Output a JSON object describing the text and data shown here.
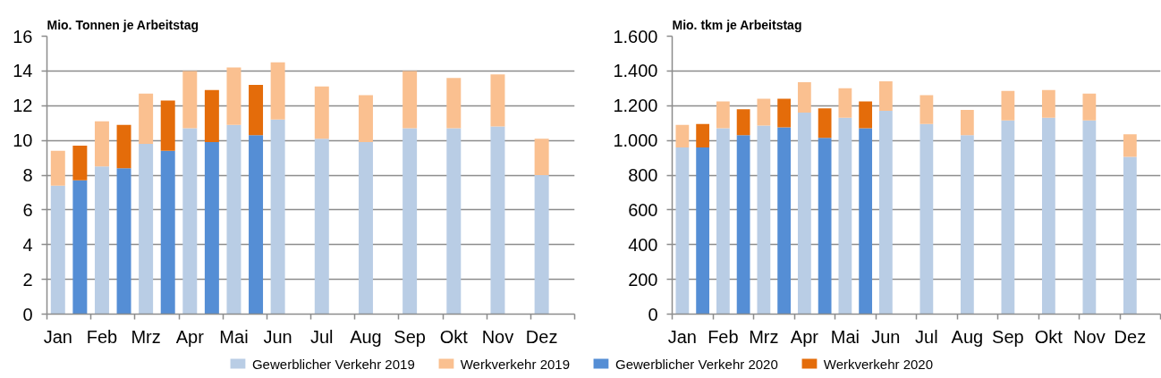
{
  "chart_data": [
    {
      "type": "bar",
      "stacked": true,
      "title": "Mio. Tonnen je Arbeitstag",
      "categories": [
        "Jan",
        null,
        "Feb",
        null,
        "Mrz",
        null,
        "Apr",
        null,
        "Mai",
        null,
        "Jun",
        null,
        "Jul",
        null,
        "Aug",
        null,
        "Sep",
        null,
        "Okt",
        null,
        "Nov",
        null,
        "Dez",
        null
      ],
      "series": [
        {
          "name": "Gewerblicher Verkehr 2019",
          "color": "#b9cde5",
          "values": [
            7.4,
            null,
            8.5,
            null,
            9.8,
            null,
            10.7,
            null,
            10.9,
            null,
            11.2,
            null,
            10.1,
            null,
            9.9,
            null,
            10.7,
            null,
            10.7,
            null,
            10.8,
            null,
            8.0,
            null
          ]
        },
        {
          "name": "Werkverkehr 2019",
          "color": "#fac090",
          "values": [
            2.0,
            null,
            2.6,
            null,
            2.9,
            null,
            3.3,
            null,
            3.3,
            null,
            3.3,
            null,
            3.0,
            null,
            2.7,
            null,
            3.3,
            null,
            2.9,
            null,
            3.0,
            null,
            2.1,
            null
          ]
        },
        {
          "name": "Gewerblicher Verkehr 2020",
          "color": "#558ed5",
          "values": [
            null,
            7.7,
            null,
            8.4,
            null,
            9.4,
            null,
            9.9,
            null,
            10.3,
            null,
            null,
            null,
            null,
            null,
            null,
            null,
            null,
            null,
            null,
            null,
            null,
            null,
            null
          ]
        },
        {
          "name": "Werkverkehr 2020",
          "color": "#e46c0a",
          "values": [
            null,
            2.0,
            null,
            2.5,
            null,
            2.9,
            null,
            3.0,
            null,
            2.9,
            null,
            null,
            null,
            null,
            null,
            null,
            null,
            null,
            null,
            null,
            null,
            null,
            null,
            null
          ]
        }
      ],
      "ylim": [
        0,
        16
      ],
      "yticks": [
        0,
        2,
        4,
        6,
        8,
        10,
        12,
        14,
        16
      ],
      "grid": "y",
      "legend": "bottom"
    },
    {
      "type": "bar",
      "stacked": true,
      "title": "Mio. tkm je Arbeitstag",
      "categories": [
        "Jan",
        null,
        "Feb",
        null,
        "Mrz",
        null,
        "Apr",
        null,
        "Mai",
        null,
        "Jun",
        null,
        "Jul",
        null,
        "Aug",
        null,
        "Sep",
        null,
        "Okt",
        null,
        "Nov",
        null,
        "Dez",
        null
      ],
      "series": [
        {
          "color": "#b9cde5",
          "values": [
            960,
            null,
            1070,
            null,
            1085,
            null,
            1160,
            null,
            1130,
            null,
            1170,
            null,
            1095,
            null,
            1030,
            null,
            1115,
            null,
            1130,
            null,
            1115,
            null,
            905,
            null
          ]
        },
        {
          "color": "#fac090",
          "values": [
            130,
            null,
            155,
            null,
            155,
            null,
            175,
            null,
            170,
            null,
            170,
            null,
            165,
            null,
            145,
            null,
            170,
            null,
            160,
            null,
            155,
            null,
            130,
            null
          ]
        },
        {
          "color": "#558ed5",
          "values": [
            null,
            960,
            null,
            1030,
            null,
            1075,
            null,
            1015,
            null,
            1070,
            null,
            null,
            null,
            null,
            null,
            null,
            null,
            null,
            null,
            null,
            null,
            null,
            null,
            null
          ]
        },
        {
          "color": "#e46c0a",
          "values": [
            null,
            135,
            null,
            150,
            null,
            165,
            null,
            170,
            null,
            155,
            null,
            null,
            null,
            null,
            null,
            null,
            null,
            null,
            null,
            null,
            null,
            null,
            null,
            null
          ]
        }
      ],
      "ylim": [
        0,
        1600
      ],
      "yticks": [
        0,
        200,
        400,
        600,
        800,
        {
          "value": 1000,
          "label": "1.000"
        },
        {
          "value": 1200,
          "label": "1.200"
        },
        {
          "value": 1400,
          "label": "1.400"
        },
        {
          "value": 1600,
          "label": "1.600"
        }
      ],
      "grid": "y"
    }
  ]
}
